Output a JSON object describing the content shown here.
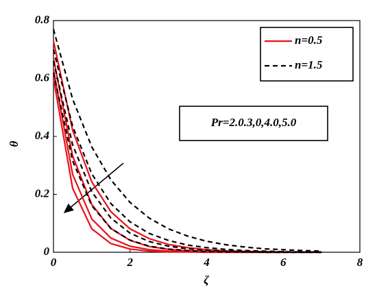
{
  "chart_data": {
    "type": "line",
    "x_label": "ζ",
    "y_label": "θ",
    "annotation": "Pr=2.0.3,0,4.0,5.0",
    "xlim": [
      0,
      8
    ],
    "xticks": [
      0,
      2,
      4,
      6,
      8
    ],
    "ylim": [
      0,
      0.8
    ],
    "yticks": [
      0,
      0.2,
      0.4,
      0.6,
      0.8
    ],
    "legend": "upper right",
    "x": [
      0,
      0.5,
      1,
      1.5,
      2,
      2.5,
      3,
      3.5,
      4,
      4.5,
      5,
      5.5,
      6,
      6.5,
      7
    ],
    "series": [
      {
        "name": "n=0.5",
        "color": "#e8101a",
        "dashed": false,
        "values": [
          [
            0.73,
            0.421,
            0.243,
            0.14,
            0.081,
            0.047,
            0.027,
            0.016,
            0.009,
            0.005,
            0.003,
            0.002,
            0.001,
            0.001,
            0
          ],
          [
            0.67,
            0.333,
            0.165,
            0.082,
            0.041,
            0.02,
            0.01,
            0.005,
            0.002,
            0.001,
            0.001,
            0,
            0,
            0,
            0
          ],
          [
            0.63,
            0.269,
            0.115,
            0.049,
            0.021,
            0.009,
            0.004,
            0.002,
            0.001,
            0,
            0,
            0,
            0,
            0,
            0
          ],
          [
            0.6,
            0.221,
            0.081,
            0.03,
            0.011,
            0.004,
            0.001,
            0.001,
            0,
            0,
            0,
            0,
            0,
            0,
            0
          ]
        ]
      },
      {
        "name": "n=1.5",
        "color": "#000000",
        "dashed": true,
        "values": [
          [
            0.77,
            0.529,
            0.364,
            0.25,
            0.172,
            0.118,
            0.081,
            0.056,
            0.038,
            0.026,
            0.018,
            0.012,
            0.009,
            0.006,
            0.004
          ],
          [
            0.7,
            0.435,
            0.271,
            0.168,
            0.105,
            0.065,
            0.041,
            0.025,
            0.016,
            0.01,
            0.006,
            0.004,
            0.002,
            0.001,
            0.001
          ],
          [
            0.66,
            0.371,
            0.209,
            0.118,
            0.066,
            0.037,
            0.021,
            0.012,
            0.007,
            0.004,
            0.002,
            0.001,
            0.001,
            0.001,
            0
          ],
          [
            0.62,
            0.316,
            0.161,
            0.082,
            0.042,
            0.021,
            0.011,
            0.006,
            0.003,
            0.001,
            0.001,
            0,
            0,
            0,
            0
          ]
        ]
      }
    ]
  }
}
